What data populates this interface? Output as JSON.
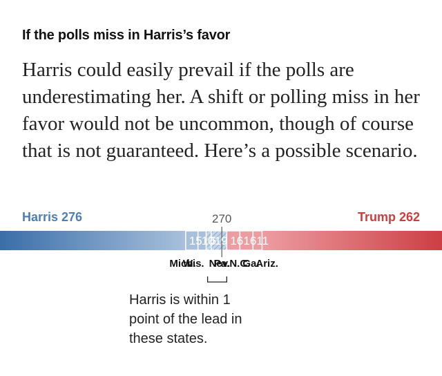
{
  "heading": "If the polls miss in Harris’s favor",
  "body": "Harris could easily prevail if the polls are underestimating her. A shift or polling miss in her favor would not be uncommon, though of course that is not guaranteed. Here’s a possible scenario.",
  "annotation": "Harris is within 1 point of the lead in these states.",
  "chart_data": {
    "type": "bar",
    "orientation": "horizontal-stacked",
    "title": "",
    "total_electoral_votes": 538,
    "threshold": {
      "label": "270",
      "value": 270
    },
    "harris": {
      "label": "Harris 276",
      "total": 276,
      "color": "#4d7fb2"
    },
    "trump": {
      "label": "Trump 262",
      "total": 262,
      "color": "#cd3d3d"
    },
    "segments": [
      {
        "state": "Mich.",
        "votes": 15,
        "value_label": "15",
        "party": "harris",
        "style": "solid"
      },
      {
        "state": "Wis.",
        "votes": 10,
        "value_label": "10",
        "party": "harris",
        "style": "solid"
      },
      {
        "state": "Nev.",
        "votes": 6,
        "value_label": "6",
        "party": "harris",
        "style": "hatched"
      },
      {
        "state": "Pa.",
        "votes": 19,
        "value_label": "19",
        "party": "harris",
        "style": "hatched"
      },
      {
        "state": "N.C.",
        "votes": 16,
        "value_label": "16",
        "party": "trump",
        "style": "solid"
      },
      {
        "state": "Ga.",
        "votes": 16,
        "value_label": "16",
        "party": "trump",
        "style": "solid"
      },
      {
        "state": "Ariz.",
        "votes": 11,
        "value_label": "11",
        "party": "trump",
        "style": "solid"
      }
    ],
    "colors": {
      "harris_base": "#3a6ea8",
      "harris_light": "#a8c0dc",
      "harris_hatch_bg": "#c4d4e8",
      "harris_hatch_line": "#8aa8cc",
      "trump_base": "#cc3f44",
      "trump_light": "#ec9da1",
      "separator": "#ffffff",
      "threshold_line": "#666666",
      "axis_text": "#555555",
      "label_text": "#121212"
    }
  }
}
